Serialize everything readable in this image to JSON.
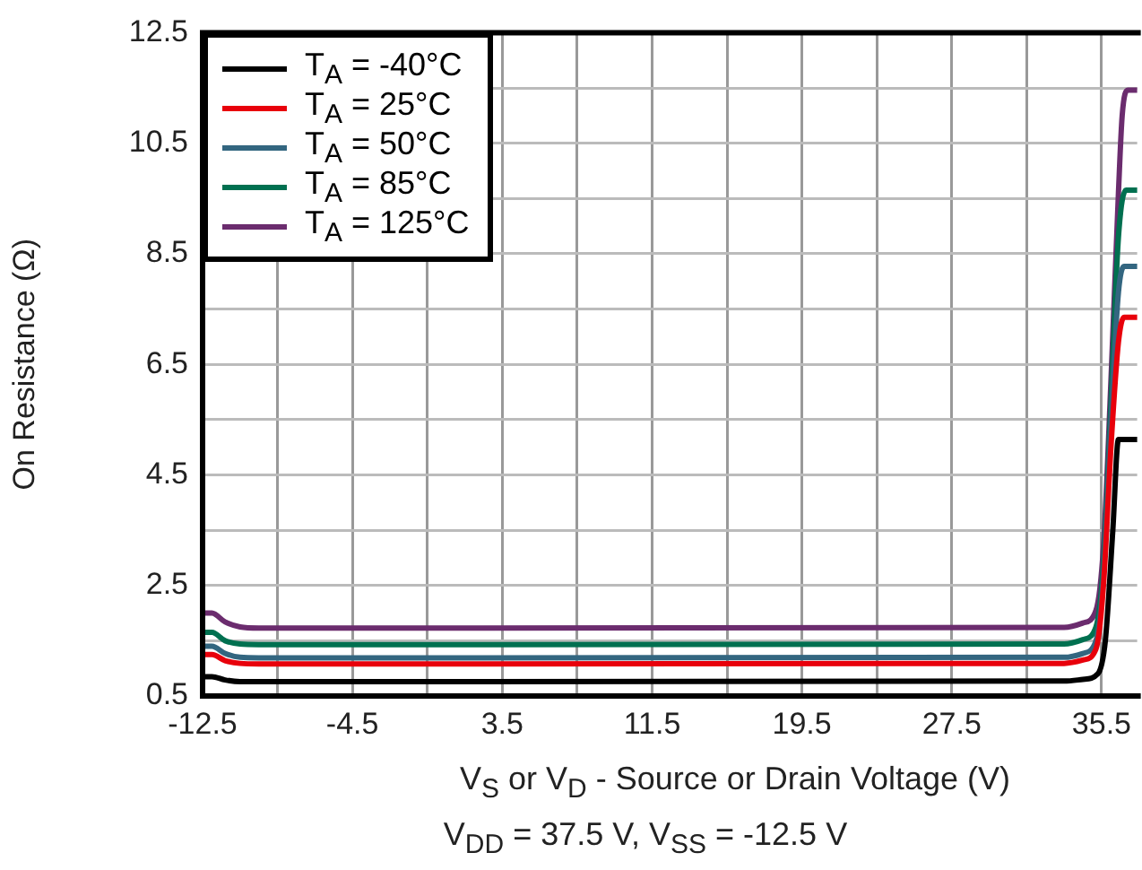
{
  "chart_data": {
    "type": "line",
    "xlabel": "V$_{S}$ or V$_{D}$ - Source or Drain Voltage (V)",
    "ylabel": "On Resistance (Ω)",
    "annotations": [
      "V$_{DD}$ = 37.5 V, V$_{SS}$ = -12.5 V"
    ],
    "xlim": [
      -12.5,
      37.4
    ],
    "xticks": [
      -12.5,
      {
        "value": -8.5,
        "label": null
      },
      -4.5,
      {
        "value": -0.5,
        "label": null
      },
      3.5,
      {
        "value": 7.5,
        "label": null
      },
      11.5,
      {
        "value": 15.5,
        "label": null
      },
      19.5,
      {
        "value": 23.5,
        "label": null
      },
      27.5,
      {
        "value": 31.5,
        "label": null
      },
      35.5
    ],
    "ylim": [
      0.5,
      12.5
    ],
    "yticks": [
      0.5,
      {
        "value": 1.5,
        "label": null
      },
      2.5,
      {
        "value": 3.5,
        "label": null
      },
      4.5,
      {
        "value": 5.5,
        "label": null
      },
      6.5,
      {
        "value": 7.5,
        "label": null
      },
      8.5,
      {
        "value": 9.5,
        "label": null
      },
      10.5,
      {
        "value": 11.5,
        "label": null
      },
      12.5
    ],
    "grid": true,
    "legend": "top left",
    "marker": "none",
    "line_style": "solid",
    "series": [
      {
        "name": "T$_{A}$ = -40°C",
        "color": "#000000",
        "x": [
          -12.5,
          -12,
          -11.3,
          -10.5,
          -9.5,
          33.5,
          34.5,
          35.3,
          35.7,
          36.1,
          36.4,
          37.4
        ],
        "values": [
          0.85,
          0.85,
          0.79,
          0.76,
          0.76,
          0.77,
          0.8,
          0.9,
          1.5,
          3.5,
          5.14,
          5.14
        ]
      },
      {
        "name": "T$_{A}$ = 25°C",
        "color": "#e8000b",
        "x": [
          -12.5,
          -12,
          -11.3,
          -10.5,
          -9.5,
          33.5,
          34.5,
          35.2,
          35.6,
          36.0,
          36.4,
          36.7,
          37.4
        ],
        "values": [
          1.25,
          1.25,
          1.14,
          1.09,
          1.08,
          1.09,
          1.15,
          1.35,
          2.5,
          5.0,
          6.9,
          7.35,
          7.35
        ]
      },
      {
        "name": "T$_{A}$ = 50°C",
        "color": "#336680",
        "x": [
          -12.5,
          -12,
          -11.3,
          -10.5,
          -9.5,
          33.5,
          34.5,
          35.2,
          35.6,
          36.0,
          36.4,
          36.7,
          37.4
        ],
        "values": [
          1.4,
          1.4,
          1.27,
          1.2,
          1.19,
          1.2,
          1.27,
          1.5,
          2.7,
          5.5,
          7.8,
          8.27,
          8.27
        ]
      },
      {
        "name": "T$_{A}$ = 85°C",
        "color": "#007050",
        "x": [
          -12.5,
          -12,
          -11.3,
          -10.5,
          -9.5,
          33.5,
          34.5,
          35.2,
          35.6,
          36.0,
          36.4,
          36.8,
          37.4
        ],
        "values": [
          1.65,
          1.65,
          1.5,
          1.44,
          1.43,
          1.44,
          1.52,
          1.75,
          2.9,
          5.8,
          8.8,
          9.65,
          9.65
        ]
      },
      {
        "name": "T$_{A}$ = 125°C",
        "color": "#6b2c6e",
        "x": [
          -12.5,
          -12,
          -11.3,
          -10.5,
          -9.5,
          33.5,
          34.5,
          35.2,
          35.6,
          36.0,
          36.4,
          36.6,
          36.9,
          37.4
        ],
        "values": [
          2.0,
          2.0,
          1.84,
          1.75,
          1.73,
          1.74,
          1.82,
          2.05,
          3.2,
          6.2,
          9.6,
          11.0,
          11.46,
          11.46
        ]
      }
    ]
  }
}
